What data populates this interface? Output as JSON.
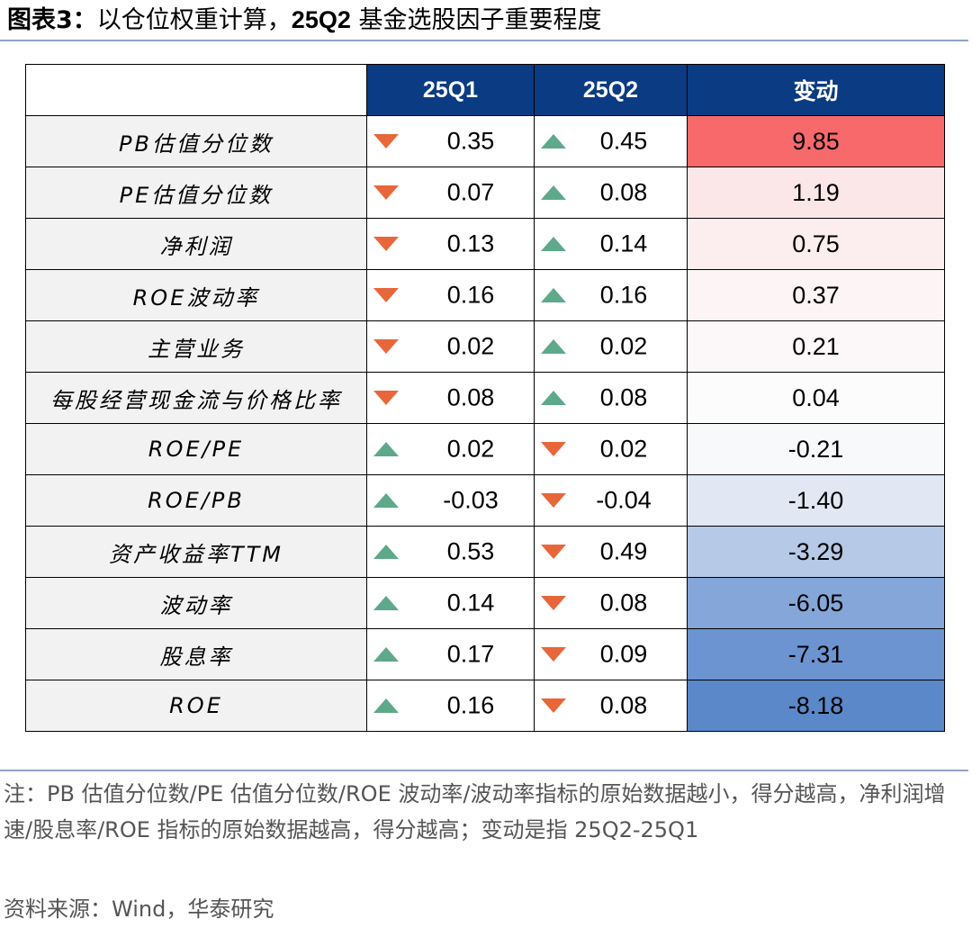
{
  "title": {
    "prefix": "图表3：",
    "text_a": "以仓位权重计算，",
    "text_bold": "25Q2",
    "text_b": " 基金选股因子重要程度"
  },
  "table": {
    "headers": [
      "",
      "25Q1",
      "25Q2",
      "变动"
    ],
    "rows": [
      {
        "name": "PB估值分位数",
        "q1": "0.35",
        "q1_dir": "down",
        "q2": "0.45",
        "q2_dir": "up",
        "change": "9.85",
        "change_color": "#f7696b"
      },
      {
        "name": "PE估值分位数",
        "q1": "0.07",
        "q1_dir": "down",
        "q2": "0.08",
        "q2_dir": "up",
        "change": "1.19",
        "change_color": "#fbe6e8"
      },
      {
        "name": "净利润",
        "q1": "0.13",
        "q1_dir": "down",
        "q2": "0.14",
        "q2_dir": "up",
        "change": "0.75",
        "change_color": "#fcedef"
      },
      {
        "name": "ROE波动率",
        "q1": "0.16",
        "q1_dir": "down",
        "q2": "0.16",
        "q2_dir": "up",
        "change": "0.37",
        "change_color": "#fcf4f5"
      },
      {
        "name": "主营业务",
        "q1": "0.02",
        "q1_dir": "down",
        "q2": "0.02",
        "q2_dir": "up",
        "change": "0.21",
        "change_color": "#fcf7f8"
      },
      {
        "name": "每股经营现金流与价格比率",
        "q1": "0.08",
        "q1_dir": "down",
        "q2": "0.08",
        "q2_dir": "up",
        "change": "0.04",
        "change_color": "#fcfcfc"
      },
      {
        "name": "ROE/PE",
        "q1": "0.02",
        "q1_dir": "up",
        "q2": "0.02",
        "q2_dir": "down",
        "change": "-0.21",
        "change_color": "#f8f9fb"
      },
      {
        "name": "ROE/PB",
        "q1": "-0.03",
        "q1_dir": "up",
        "q2": "-0.04",
        "q2_dir": "down",
        "change": "-1.40",
        "change_color": "#e1e8f3"
      },
      {
        "name": "资产收益率TTM",
        "q1": "0.53",
        "q1_dir": "up",
        "q2": "0.49",
        "q2_dir": "down",
        "change": "-3.29",
        "change_color": "#b6c9e6"
      },
      {
        "name": "波动率",
        "q1": "0.14",
        "q1_dir": "up",
        "q2": "0.08",
        "q2_dir": "down",
        "change": "-6.05",
        "change_color": "#84a6d8"
      },
      {
        "name": "股息率",
        "q1": "0.17",
        "q1_dir": "up",
        "q2": "0.09",
        "q2_dir": "down",
        "change": "-7.31",
        "change_color": "#6b94d0"
      },
      {
        "name": "ROE",
        "q1": "0.16",
        "q1_dir": "up",
        "q2": "0.08",
        "q2_dir": "down",
        "change": "-8.18",
        "change_color": "#5a88c9"
      }
    ]
  },
  "arrow_colors": {
    "up": "#5ea98a",
    "down": "#e8673a"
  },
  "note": "注：PB 估值分位数/PE 估值分位数/ROE 波动率/波动率指标的原始数据越小，得分越高，净利润增速/股息率/ROE 指标的原始数据越高，得分越高；变动是指 25Q2-25Q1",
  "source": "资料来源：Wind，华泰研究"
}
